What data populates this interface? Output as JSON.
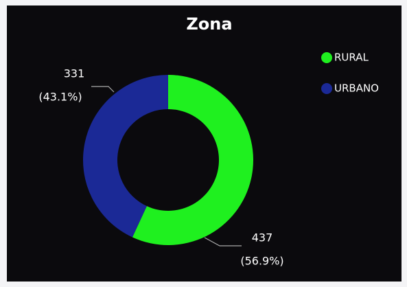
{
  "chart_data": {
    "type": "donut",
    "title": "Zona",
    "categories": [
      "RURAL",
      "URBANO"
    ],
    "values": [
      437,
      331
    ],
    "percentages": [
      56.9,
      43.1
    ],
    "percent_labels": [
      "(56.9%)",
      "(43.1%)"
    ],
    "colors": [
      "#1ff01f",
      "#1b2996"
    ],
    "legend": "top-right"
  }
}
